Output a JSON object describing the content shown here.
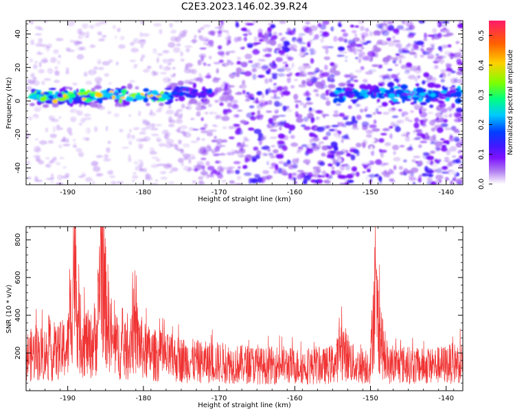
{
  "title": "C2E3.2023.146.02.39.R24",
  "chart_data": [
    {
      "type": "heatmap",
      "xlabel": "Height of straight line (km)",
      "ylabel": "Frequency (Hz)",
      "xlim": [
        -195.5,
        -137.8
      ],
      "ylim": [
        -50,
        48
      ],
      "xticks": [
        -190,
        -180,
        -170,
        -160,
        -150,
        -140
      ],
      "yticks": [
        40,
        20,
        0,
        -20,
        -40
      ],
      "colorbar": {
        "label": "Normalized spectral amplitude",
        "range": [
          0.0,
          0.55
        ],
        "ticks": [
          0.0,
          0.1,
          0.2,
          0.3,
          0.4,
          0.5
        ],
        "colormap": [
          "#ffffff",
          "#b07cf0",
          "#7d12ff",
          "#3c1aff",
          "#0040ff",
          "#00c8ff",
          "#00ff80",
          "#7fff00",
          "#ffd000",
          "#ff6000",
          "#ff1a6a"
        ]
      },
      "features": [
        {
          "x_range": [
            -195,
            -176
          ],
          "y_center": 3,
          "peak_amplitude": 0.45
        },
        {
          "x_range": [
            -176,
            -171
          ],
          "y_center": 5,
          "peak_amplitude": 0.25
        },
        {
          "x_range": [
            -155,
            -138
          ],
          "y_center": 4,
          "peak_amplitude": 0.3
        }
      ]
    },
    {
      "type": "line",
      "xlabel": "Height of straight line (km)",
      "ylabel": "SNR (10 * v/v)",
      "xlim": [
        -195.5,
        -137.8
      ],
      "ylim": [
        0,
        870
      ],
      "xticks": [
        -190,
        -180,
        -170,
        -160,
        -150,
        -140
      ],
      "yticks": [
        800,
        600,
        400,
        200
      ],
      "series_color": "#f03232",
      "series": [
        {
          "x": [
            -195.5,
            -194,
            -192,
            -190,
            -189.5,
            -189.2,
            -188.5,
            -187,
            -186,
            -185.6,
            -185.2,
            -184,
            -182,
            -181.5,
            -180,
            -178,
            -176,
            -174,
            -172,
            -170,
            -168,
            -166,
            -164,
            -162,
            -160,
            -158,
            -156,
            -154.5,
            -154,
            -152,
            -150,
            -149.5,
            -148,
            -146,
            -144,
            -142,
            -140,
            -138
          ],
          "y": [
            180,
            200,
            190,
            230,
            420,
            770,
            300,
            230,
            320,
            870,
            500,
            240,
            200,
            330,
            210,
            180,
            170,
            160,
            150,
            150,
            140,
            140,
            130,
            140,
            130,
            130,
            130,
            150,
            230,
            130,
            140,
            500,
            130,
            140,
            130,
            130,
            140,
            150
          ]
        }
      ]
    }
  ]
}
